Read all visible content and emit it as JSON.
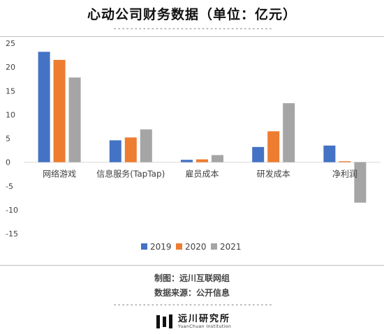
{
  "title": "心动公司财务数据（单位：亿元）",
  "dashes": "--------------------------------------",
  "chart_data": {
    "type": "bar",
    "categories": [
      "网络游戏",
      "信息服务(TapTap)",
      "雇员成本",
      "研发成本",
      "净利润"
    ],
    "series": [
      {
        "name": "2019",
        "color": "#4472c4",
        "values": [
          23.2,
          4.6,
          0.5,
          3.2,
          3.5
        ]
      },
      {
        "name": "2020",
        "color": "#ed7d31",
        "values": [
          21.5,
          5.2,
          0.6,
          6.5,
          0.2
        ]
      },
      {
        "name": "2021",
        "color": "#a5a5a5",
        "values": [
          17.8,
          6.9,
          1.5,
          12.4,
          -8.5
        ]
      }
    ],
    "ylim": [
      -15,
      25
    ],
    "yticks": [
      -15,
      -10,
      -5,
      0,
      5,
      10,
      15,
      20,
      25
    ],
    "legend_position": "bottom",
    "grid": false
  },
  "credits": {
    "maker": "制图：远川互联网组",
    "source": "数据来源：公开信息"
  },
  "logo": {
    "cn": "远川研究所",
    "en": "YuanChuan Institution"
  }
}
